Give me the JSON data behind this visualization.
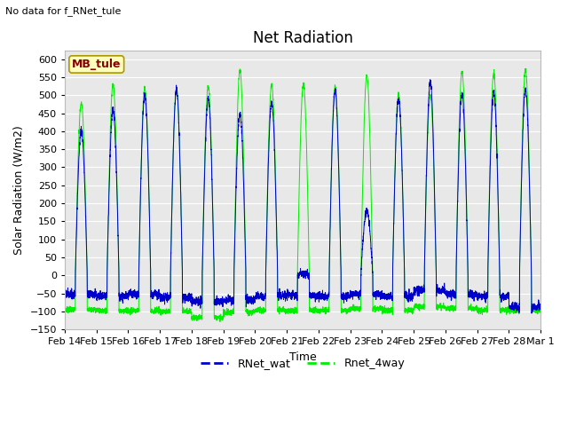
{
  "title": "Net Radiation",
  "top_left_text": "No data for f_RNet_tule",
  "ylabel": "Solar Radiation (W/m2)",
  "xlabel": "Time",
  "ylim": [
    -150,
    625
  ],
  "yticks": [
    -150,
    -100,
    -50,
    0,
    50,
    100,
    150,
    200,
    250,
    300,
    350,
    400,
    450,
    500,
    550,
    600
  ],
  "line1_color": "#0000cc",
  "line2_color": "#00ee00",
  "line1_label": "RNet_wat",
  "line2_label": "Rnet_4way",
  "legend_box_color": "#ffffbb",
  "legend_box_text": "MB_tule",
  "legend_box_text_color": "#880000",
  "fig_bg_color": "#ffffff",
  "plot_bg_color": "#e8e8e8",
  "grid_color": "#ffffff",
  "title_fontsize": 12,
  "label_fontsize": 9,
  "tick_fontsize": 8,
  "tick_labels": [
    "Feb 14",
    "Feb 15",
    "Feb 16",
    "Feb 17",
    "Feb 18",
    "Feb 19",
    "Feb 20",
    "Feb 21",
    "Feb 22",
    "Feb 23",
    "Feb 24",
    "Feb 25",
    "Feb 26",
    "Feb 27",
    "Feb 28",
    "Mar 1"
  ]
}
